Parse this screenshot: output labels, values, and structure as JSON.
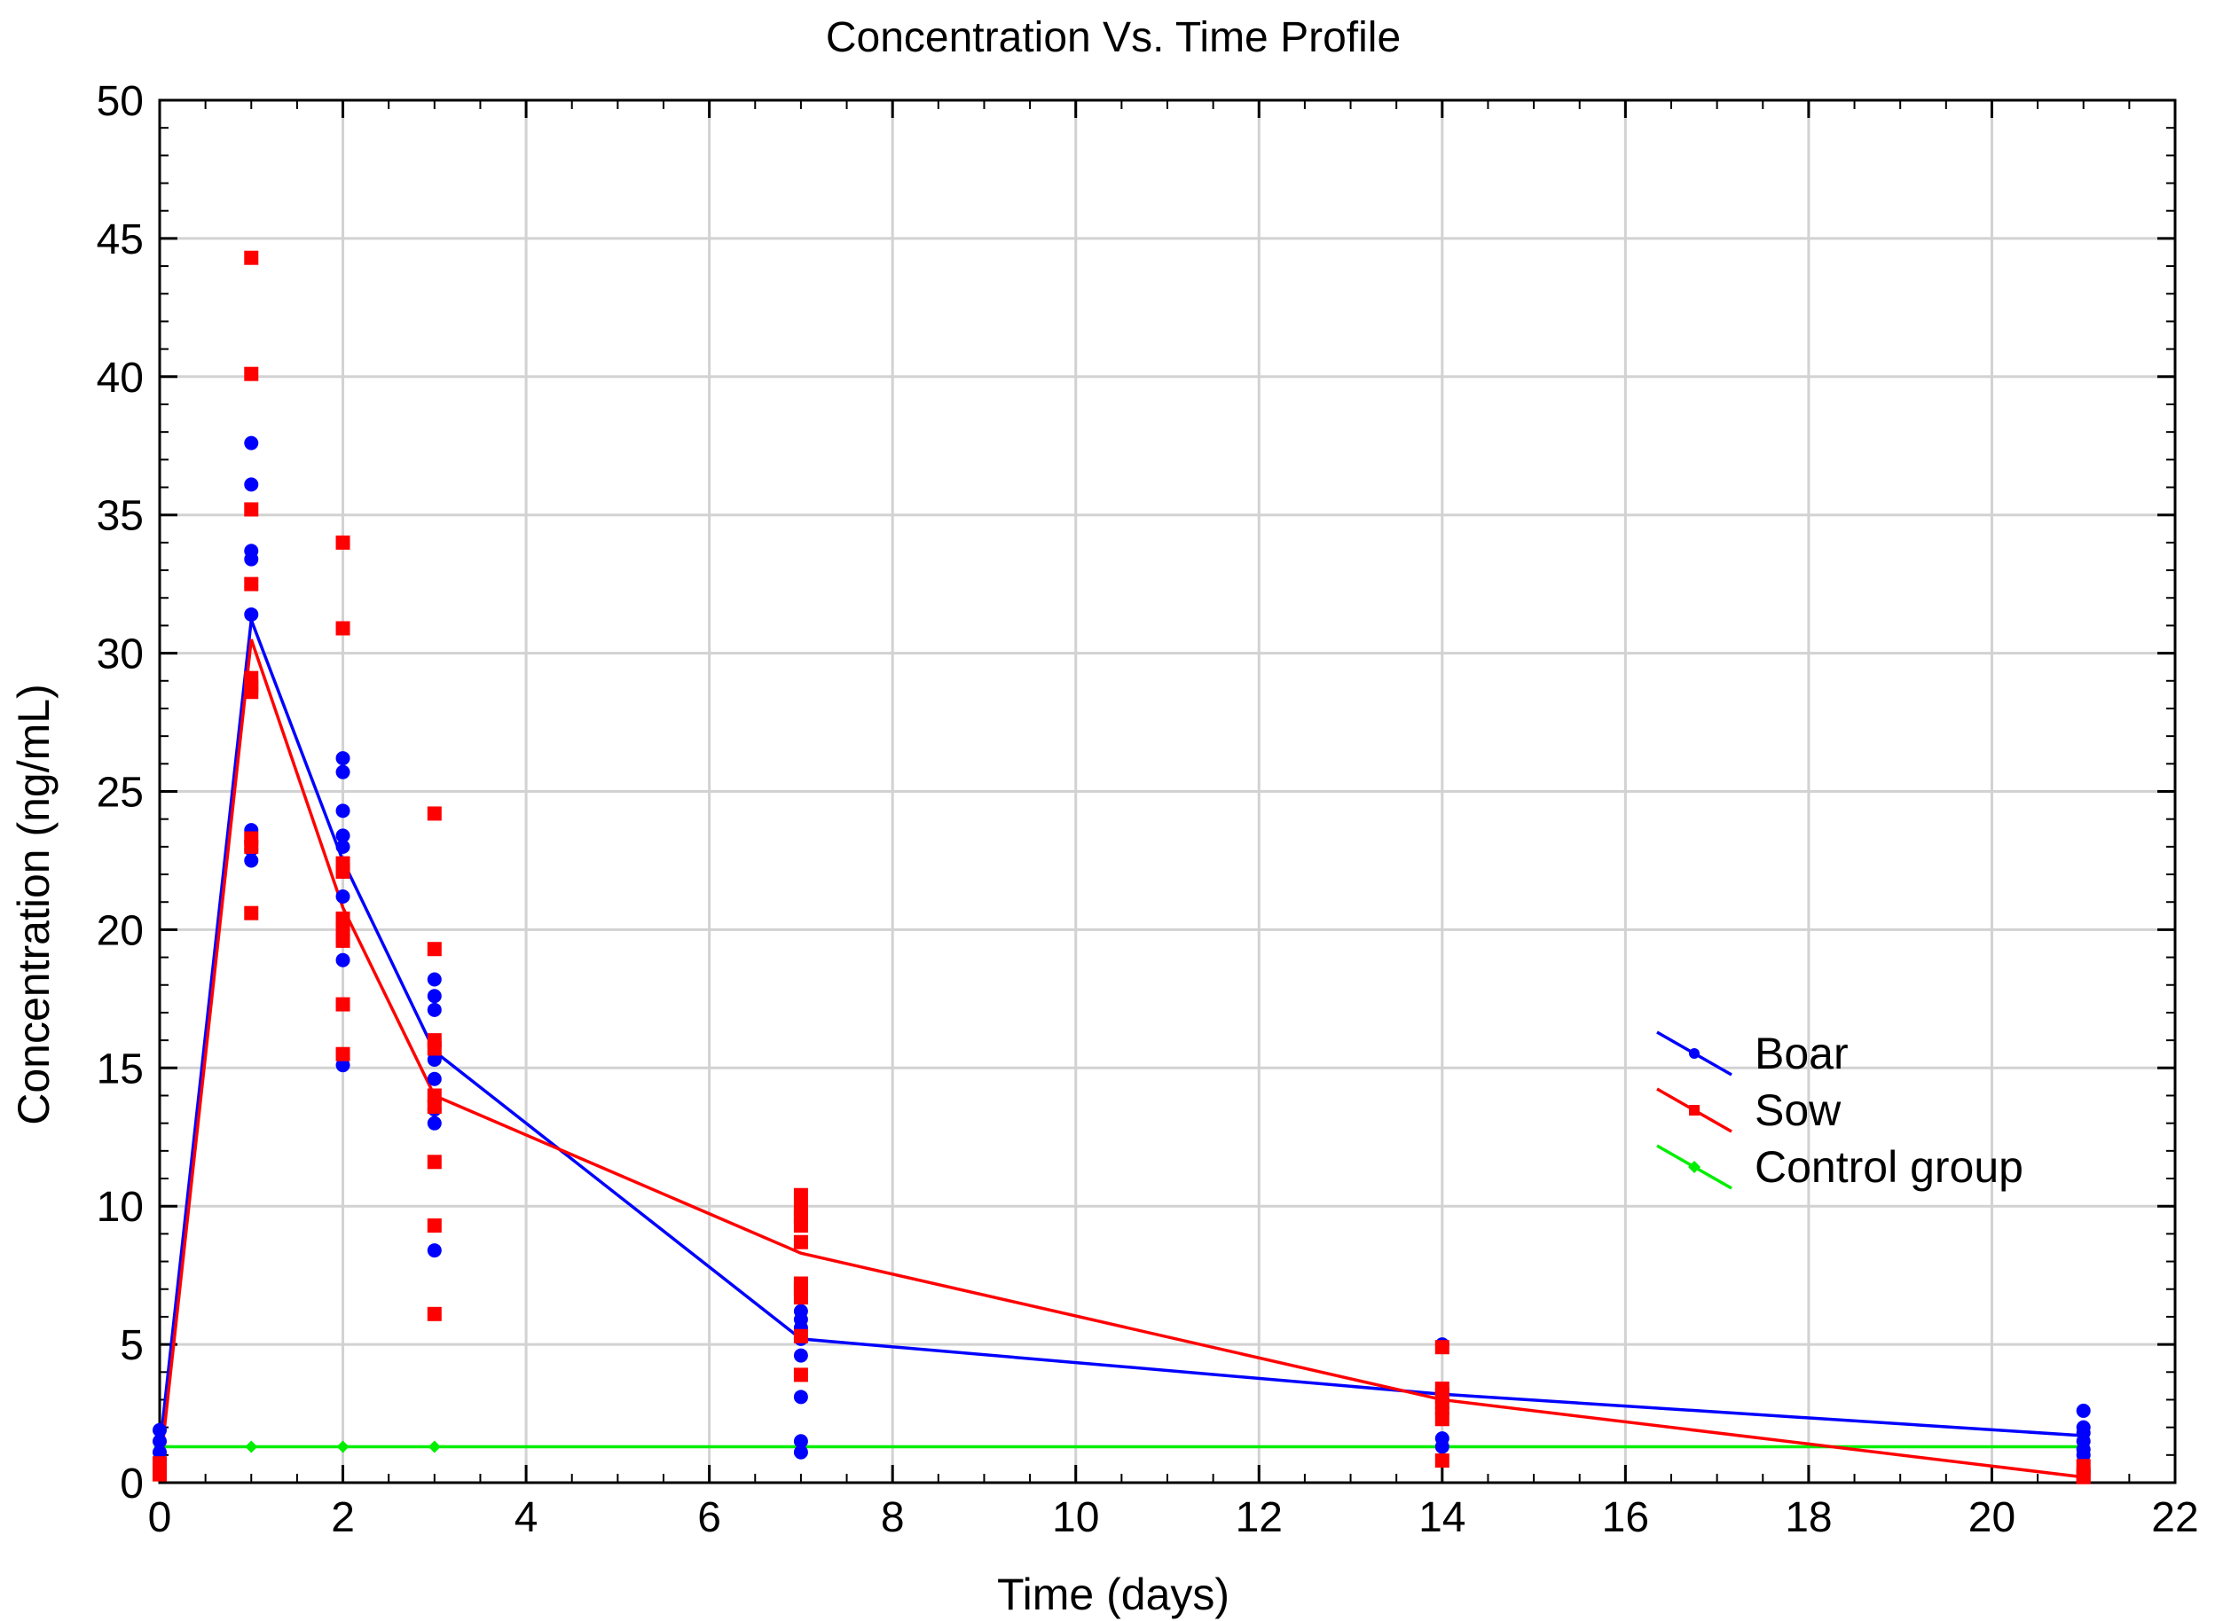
{
  "chart_data": {
    "type": "scatter",
    "title": "Concentration Vs. Time Profile",
    "xlabel": "Time (days)",
    "ylabel": "Concentration (ng/mL)",
    "xlim": [
      0,
      22
    ],
    "ylim": [
      0,
      50
    ],
    "x_ticks": [
      0,
      2,
      4,
      6,
      8,
      10,
      12,
      14,
      16,
      18,
      20,
      22
    ],
    "y_ticks": [
      0,
      5,
      10,
      15,
      20,
      25,
      30,
      35,
      40,
      45,
      50
    ],
    "grid": true,
    "legend_position": "right",
    "series": [
      {
        "name": "Boar",
        "color": "#0000ff",
        "marker": "circle",
        "mean_line": [
          {
            "x": 0,
            "y": 1.2
          },
          {
            "x": 1,
            "y": 31.2
          },
          {
            "x": 2,
            "y": 22.5
          },
          {
            "x": 3,
            "y": 15.6
          },
          {
            "x": 7,
            "y": 5.2
          },
          {
            "x": 14,
            "y": 3.2
          },
          {
            "x": 21,
            "y": 1.7
          }
        ],
        "points": [
          {
            "x": 0,
            "y": 1.9
          },
          {
            "x": 0,
            "y": 1.5
          },
          {
            "x": 0,
            "y": 1.1
          },
          {
            "x": 0,
            "y": 0.7
          },
          {
            "x": 1,
            "y": 37.6
          },
          {
            "x": 1,
            "y": 36.1
          },
          {
            "x": 1,
            "y": 33.7
          },
          {
            "x": 1,
            "y": 33.4
          },
          {
            "x": 1,
            "y": 31.4
          },
          {
            "x": 1,
            "y": 23.6
          },
          {
            "x": 1,
            "y": 22.9
          },
          {
            "x": 1,
            "y": 22.5
          },
          {
            "x": 2,
            "y": 26.2
          },
          {
            "x": 2,
            "y": 25.7
          },
          {
            "x": 2,
            "y": 24.3
          },
          {
            "x": 2,
            "y": 23.4
          },
          {
            "x": 2,
            "y": 23.0
          },
          {
            "x": 2,
            "y": 22.1
          },
          {
            "x": 2,
            "y": 21.2
          },
          {
            "x": 2,
            "y": 19.6
          },
          {
            "x": 2,
            "y": 18.9
          },
          {
            "x": 2,
            "y": 15.1
          },
          {
            "x": 3,
            "y": 18.2
          },
          {
            "x": 3,
            "y": 17.6
          },
          {
            "x": 3,
            "y": 17.1
          },
          {
            "x": 3,
            "y": 15.3
          },
          {
            "x": 3,
            "y": 14.6
          },
          {
            "x": 3,
            "y": 13.5
          },
          {
            "x": 3,
            "y": 13.0
          },
          {
            "x": 3,
            "y": 8.4
          },
          {
            "x": 7,
            "y": 6.2
          },
          {
            "x": 7,
            "y": 5.9
          },
          {
            "x": 7,
            "y": 5.6
          },
          {
            "x": 7,
            "y": 5.2
          },
          {
            "x": 7,
            "y": 4.6
          },
          {
            "x": 7,
            "y": 3.1
          },
          {
            "x": 7,
            "y": 1.5
          },
          {
            "x": 7,
            "y": 1.1
          },
          {
            "x": 14,
            "y": 5.0
          },
          {
            "x": 14,
            "y": 3.4
          },
          {
            "x": 14,
            "y": 3.0
          },
          {
            "x": 14,
            "y": 2.7
          },
          {
            "x": 14,
            "y": 1.6
          },
          {
            "x": 14,
            "y": 1.3
          },
          {
            "x": 21,
            "y": 2.6
          },
          {
            "x": 21,
            "y": 2.0
          },
          {
            "x": 21,
            "y": 1.8
          },
          {
            "x": 21,
            "y": 1.5
          },
          {
            "x": 21,
            "y": 1.2
          },
          {
            "x": 21,
            "y": 1.0
          }
        ]
      },
      {
        "name": "Sow",
        "color": "#ff0000",
        "marker": "square",
        "mean_line": [
          {
            "x": 0,
            "y": 0.4
          },
          {
            "x": 1,
            "y": 30.5
          },
          {
            "x": 2,
            "y": 20.8
          },
          {
            "x": 3,
            "y": 14.0
          },
          {
            "x": 7,
            "y": 8.3
          },
          {
            "x": 14,
            "y": 3.0
          },
          {
            "x": 21,
            "y": 0.2
          }
        ],
        "points": [
          {
            "x": 0,
            "y": 0.7
          },
          {
            "x": 0,
            "y": 0.3
          },
          {
            "x": 1,
            "y": 44.3
          },
          {
            "x": 1,
            "y": 40.1
          },
          {
            "x": 1,
            "y": 35.2
          },
          {
            "x": 1,
            "y": 32.5
          },
          {
            "x": 1,
            "y": 29.1
          },
          {
            "x": 1,
            "y": 28.8
          },
          {
            "x": 1,
            "y": 28.6
          },
          {
            "x": 1,
            "y": 23.3
          },
          {
            "x": 1,
            "y": 23.0
          },
          {
            "x": 1,
            "y": 20.6
          },
          {
            "x": 2,
            "y": 34.0
          },
          {
            "x": 2,
            "y": 30.9
          },
          {
            "x": 2,
            "y": 22.4
          },
          {
            "x": 2,
            "y": 22.1
          },
          {
            "x": 2,
            "y": 20.4
          },
          {
            "x": 2,
            "y": 20.0
          },
          {
            "x": 2,
            "y": 19.6
          },
          {
            "x": 2,
            "y": 17.3
          },
          {
            "x": 2,
            "y": 15.5
          },
          {
            "x": 3,
            "y": 24.2
          },
          {
            "x": 3,
            "y": 19.3
          },
          {
            "x": 3,
            "y": 16.0
          },
          {
            "x": 3,
            "y": 15.7
          },
          {
            "x": 3,
            "y": 14.0
          },
          {
            "x": 3,
            "y": 13.6
          },
          {
            "x": 3,
            "y": 11.6
          },
          {
            "x": 3,
            "y": 9.3
          },
          {
            "x": 3,
            "y": 6.1
          },
          {
            "x": 7,
            "y": 10.4
          },
          {
            "x": 7,
            "y": 9.9
          },
          {
            "x": 7,
            "y": 9.6
          },
          {
            "x": 7,
            "y": 9.3
          },
          {
            "x": 7,
            "y": 8.7
          },
          {
            "x": 7,
            "y": 7.2
          },
          {
            "x": 7,
            "y": 7.0
          },
          {
            "x": 7,
            "y": 6.7
          },
          {
            "x": 7,
            "y": 5.3
          },
          {
            "x": 7,
            "y": 3.9
          },
          {
            "x": 14,
            "y": 4.9
          },
          {
            "x": 14,
            "y": 3.4
          },
          {
            "x": 14,
            "y": 3.1
          },
          {
            "x": 14,
            "y": 2.7
          },
          {
            "x": 14,
            "y": 2.3
          },
          {
            "x": 14,
            "y": 0.8
          },
          {
            "x": 21,
            "y": 0.6
          },
          {
            "x": 21,
            "y": 0.3
          },
          {
            "x": 21,
            "y": 0.2
          }
        ]
      },
      {
        "name": "Control group",
        "color": "#00ee00",
        "marker": "diamond",
        "mean_line": [
          {
            "x": 0,
            "y": 1.3
          },
          {
            "x": 1,
            "y": 1.3
          },
          {
            "x": 2,
            "y": 1.3
          },
          {
            "x": 3,
            "y": 1.3
          },
          {
            "x": 7,
            "y": 1.3
          },
          {
            "x": 14,
            "y": 1.3
          },
          {
            "x": 21,
            "y": 1.3
          }
        ],
        "points": [
          {
            "x": 0,
            "y": 1.3
          },
          {
            "x": 1,
            "y": 1.3
          },
          {
            "x": 2,
            "y": 1.3
          },
          {
            "x": 3,
            "y": 1.3
          },
          {
            "x": 7,
            "y": 1.3
          },
          {
            "x": 14,
            "y": 1.3
          },
          {
            "x": 21,
            "y": 1.3
          }
        ]
      }
    ]
  }
}
